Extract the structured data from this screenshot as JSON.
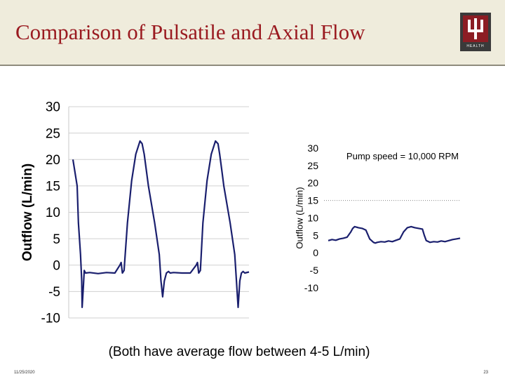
{
  "header": {
    "title": "Comparison of Pulsatile and Axial Flow"
  },
  "logo": {
    "text": "HEALTH",
    "name": "trident-logo-icon"
  },
  "chart_data": [
    {
      "type": "line",
      "title": "",
      "xlabel": "",
      "ylabel": "Outflow (L/min)",
      "ylim": [
        -10,
        30
      ],
      "yticks": [
        "30",
        "25",
        "20",
        "15",
        "10",
        "5",
        "0",
        "-5",
        "-10"
      ],
      "grid": "horizontal",
      "series_color": "#1a1f6e",
      "series": [
        {
          "name": "",
          "x": [
            0,
            0.4,
            1,
            1.3,
            1.8,
            2.1,
            2.2,
            2.5,
            2.7,
            3,
            4,
            6,
            8,
            10,
            11.2,
            11.5,
            11.8,
            12.2,
            13,
            14,
            15,
            16,
            16.5,
            17,
            17.5,
            18,
            19.5,
            20.6,
            21,
            21.4,
            21.8,
            22.3,
            22.8,
            23.2,
            24,
            26,
            28,
            29.4,
            29.7,
            30,
            30.4,
            31,
            32,
            33,
            34,
            34.6,
            35,
            35.5,
            36,
            37.5,
            38.6,
            39,
            39.4,
            39.8,
            40.2,
            40.6,
            41,
            42
          ],
          "y": [
            20,
            18,
            15,
            8,
            2,
            -3,
            -8,
            -4,
            -1,
            -1.5,
            -1.4,
            -1.6,
            -1.4,
            -1.5,
            0,
            0.5,
            -1.5,
            -1,
            8,
            16,
            21,
            23.5,
            23,
            21,
            18,
            15,
            8,
            2,
            -3,
            -6,
            -3,
            -1.5,
            -1.2,
            -1.5,
            -1.4,
            -1.5,
            -1.5,
            0,
            0.5,
            -1.5,
            -1,
            8,
            16,
            21,
            23.5,
            23,
            21,
            18,
            15,
            8,
            2,
            -3,
            -8,
            -3,
            -1.5,
            -1.2,
            -1.5,
            -1.3
          ]
        }
      ]
    },
    {
      "type": "line",
      "title": "",
      "annotation": "Pump speed = 10,000 RPM",
      "xlabel": "",
      "ylabel": "Outflow (L/min)",
      "ylim": [
        -10,
        30
      ],
      "yticks": [
        "30",
        "25",
        "20",
        "15",
        "10",
        "5",
        "0",
        "-5",
        "-10"
      ],
      "reference_line": 15,
      "series_color": "#1a1f6e",
      "series": [
        {
          "name": "",
          "x": [
            0,
            2,
            4,
            6,
            8,
            10,
            12,
            13,
            14,
            16,
            18,
            20,
            22,
            24,
            25,
            26,
            28,
            30,
            32,
            34,
            36,
            38,
            40,
            42,
            44,
            46,
            48,
            50,
            51,
            52,
            54,
            56,
            58,
            60,
            62,
            64,
            66,
            68,
            70
          ],
          "y": [
            3.5,
            3.8,
            3.6,
            4,
            4.2,
            4.5,
            6,
            7,
            7.5,
            7.2,
            7,
            6.5,
            4,
            3,
            2.8,
            3,
            3.2,
            3.1,
            3.4,
            3.2,
            3.6,
            4,
            6,
            7.2,
            7.5,
            7.2,
            7,
            6.8,
            5,
            3.5,
            3,
            3.2,
            3.1,
            3.4,
            3.2,
            3.5,
            3.8,
            4,
            4.2
          ]
        }
      ]
    }
  ],
  "caption": "(Both have average flow between 4-5 L/min)",
  "footer": {
    "date": "11/25/2020",
    "page": "23"
  }
}
